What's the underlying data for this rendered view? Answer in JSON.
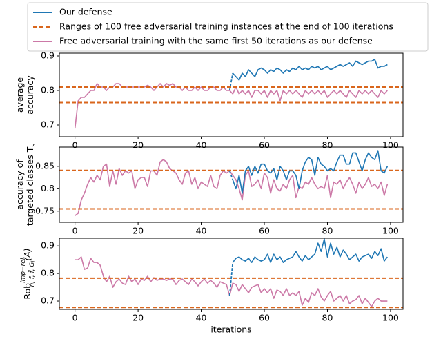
{
  "chart_data": [
    {
      "type": "line",
      "ylabel": [
        "average",
        "accuracy"
      ],
      "xlim": [
        -4.95,
        103.95
      ],
      "xticks": [
        0,
        20,
        40,
        60,
        80,
        100
      ],
      "ylim": [
        0.666,
        0.908
      ],
      "yticks": [
        0.7,
        0.8,
        0.9
      ],
      "series": [
        {
          "name": "Our defense",
          "color": "#1f77b4",
          "first_segment_dashed": true,
          "x": [
            49,
            50,
            51,
            52,
            53,
            54,
            55,
            56,
            57,
            58,
            59,
            60,
            61,
            62,
            63,
            64,
            65,
            66,
            67,
            68,
            69,
            70,
            71,
            72,
            73,
            74,
            75,
            76,
            77,
            78,
            79,
            80,
            81,
            82,
            83,
            84,
            85,
            86,
            87,
            88,
            89,
            90,
            91,
            92,
            93,
            94,
            95,
            96,
            97,
            98,
            99
          ],
          "values": [
            0.8,
            0.85,
            0.84,
            0.83,
            0.85,
            0.84,
            0.86,
            0.85,
            0.84,
            0.86,
            0.865,
            0.86,
            0.85,
            0.86,
            0.855,
            0.865,
            0.86,
            0.85,
            0.86,
            0.855,
            0.865,
            0.86,
            0.87,
            0.86,
            0.865,
            0.86,
            0.87,
            0.865,
            0.87,
            0.86,
            0.865,
            0.87,
            0.86,
            0.865,
            0.87,
            0.875,
            0.87,
            0.875,
            0.88,
            0.87,
            0.885,
            0.88,
            0.875,
            0.88,
            0.885,
            0.885,
            0.89,
            0.865,
            0.87,
            0.87,
            0.875
          ]
        },
        {
          "name": "Ranges of 100 free adversarial training instances at the end of 100 iterations",
          "color": "#d9661c",
          "style": "hline",
          "values": [
            0.765,
            0.81
          ]
        },
        {
          "name": "Free adversarial training with the same first 50 iterations as our defense",
          "color": "#cc79a7",
          "x": [
            0,
            1,
            2,
            3,
            4,
            5,
            6,
            7,
            8,
            9,
            10,
            11,
            12,
            13,
            14,
            15,
            16,
            17,
            18,
            19,
            20,
            21,
            22,
            23,
            24,
            25,
            26,
            27,
            28,
            29,
            30,
            31,
            32,
            33,
            34,
            35,
            36,
            37,
            38,
            39,
            40,
            41,
            42,
            43,
            44,
            45,
            46,
            47,
            48,
            49,
            50,
            51,
            52,
            53,
            54,
            55,
            56,
            57,
            58,
            59,
            60,
            61,
            62,
            63,
            64,
            65,
            66,
            67,
            68,
            69,
            70,
            71,
            72,
            73,
            74,
            75,
            76,
            77,
            78,
            79,
            80,
            81,
            82,
            83,
            84,
            85,
            86,
            87,
            88,
            89,
            90,
            91,
            92,
            93,
            94,
            95,
            96,
            97,
            98,
            99
          ],
          "values": [
            0.69,
            0.77,
            0.78,
            0.78,
            0.79,
            0.8,
            0.8,
            0.82,
            0.81,
            0.81,
            0.8,
            0.81,
            0.81,
            0.82,
            0.82,
            0.81,
            0.81,
            0.81,
            0.81,
            0.81,
            0.81,
            0.81,
            0.81,
            0.815,
            0.81,
            0.8,
            0.81,
            0.82,
            0.81,
            0.82,
            0.815,
            0.82,
            0.81,
            0.81,
            0.8,
            0.81,
            0.8,
            0.8,
            0.81,
            0.8,
            0.81,
            0.8,
            0.8,
            0.81,
            0.81,
            0.8,
            0.8,
            0.81,
            0.8,
            0.8,
            0.79,
            0.81,
            0.79,
            0.8,
            0.79,
            0.8,
            0.78,
            0.8,
            0.8,
            0.79,
            0.8,
            0.78,
            0.8,
            0.79,
            0.8,
            0.77,
            0.8,
            0.79,
            0.8,
            0.79,
            0.8,
            0.79,
            0.78,
            0.8,
            0.79,
            0.8,
            0.79,
            0.8,
            0.79,
            0.8,
            0.78,
            0.79,
            0.8,
            0.79,
            0.8,
            0.79,
            0.78,
            0.8,
            0.79,
            0.78,
            0.8,
            0.79,
            0.8,
            0.79,
            0.8,
            0.79,
            0.78,
            0.8,
            0.79,
            0.8
          ]
        }
      ]
    },
    {
      "type": "line",
      "ylabel": [
        "accuracy of",
        "targeted classes T"
      ],
      "ylabel_sub": "s",
      "xlim": [
        -4.95,
        103.95
      ],
      "xticks": [
        0,
        20,
        40,
        60,
        80,
        100
      ],
      "ylim": [
        0.725,
        0.893
      ],
      "yticks": [
        0.75,
        0.8,
        0.85
      ],
      "series": [
        {
          "color": "#1f77b4",
          "first_segment_dashed": true,
          "x": [
            49,
            50,
            51,
            52,
            53,
            54,
            55,
            56,
            57,
            58,
            59,
            60,
            61,
            62,
            63,
            64,
            65,
            66,
            67,
            68,
            69,
            70,
            71,
            72,
            73,
            74,
            75,
            76,
            77,
            78,
            79,
            80,
            81,
            82,
            83,
            84,
            85,
            86,
            87,
            88,
            89,
            90,
            91,
            92,
            93,
            94,
            95,
            96,
            97,
            98,
            99
          ],
          "values": [
            0.84,
            0.82,
            0.8,
            0.83,
            0.79,
            0.84,
            0.85,
            0.83,
            0.85,
            0.835,
            0.855,
            0.855,
            0.84,
            0.835,
            0.845,
            0.82,
            0.85,
            0.84,
            0.82,
            0.84,
            0.84,
            0.83,
            0.8,
            0.84,
            0.86,
            0.87,
            0.865,
            0.83,
            0.87,
            0.855,
            0.85,
            0.84,
            0.845,
            0.84,
            0.86,
            0.875,
            0.875,
            0.855,
            0.855,
            0.88,
            0.88,
            0.86,
            0.84,
            0.865,
            0.88,
            0.87,
            0.865,
            0.885,
            0.84,
            0.835,
            0.85
          ]
        },
        {
          "color": "#d9661c",
          "style": "hline",
          "values": [
            0.755,
            0.841
          ]
        },
        {
          "color": "#cc79a7",
          "x": [
            0,
            1,
            2,
            3,
            4,
            5,
            6,
            7,
            8,
            9,
            10,
            11,
            12,
            13,
            14,
            15,
            16,
            17,
            18,
            19,
            20,
            21,
            22,
            23,
            24,
            25,
            26,
            27,
            28,
            29,
            30,
            31,
            32,
            33,
            34,
            35,
            36,
            37,
            38,
            39,
            40,
            41,
            42,
            43,
            44,
            45,
            46,
            47,
            48,
            49,
            50,
            51,
            52,
            53,
            54,
            55,
            56,
            57,
            58,
            59,
            60,
            61,
            62,
            63,
            64,
            65,
            66,
            67,
            68,
            69,
            70,
            71,
            72,
            73,
            74,
            75,
            76,
            77,
            78,
            79,
            80,
            81,
            82,
            83,
            84,
            85,
            86,
            87,
            88,
            89,
            90,
            91,
            92,
            93,
            94,
            95,
            96,
            97,
            98,
            99
          ],
          "values": [
            0.74,
            0.745,
            0.775,
            0.79,
            0.81,
            0.825,
            0.815,
            0.83,
            0.82,
            0.85,
            0.855,
            0.805,
            0.84,
            0.81,
            0.845,
            0.83,
            0.84,
            0.835,
            0.84,
            0.8,
            0.82,
            0.825,
            0.825,
            0.805,
            0.84,
            0.84,
            0.83,
            0.86,
            0.865,
            0.86,
            0.845,
            0.84,
            0.835,
            0.82,
            0.81,
            0.835,
            0.84,
            0.81,
            0.825,
            0.8,
            0.815,
            0.81,
            0.805,
            0.83,
            0.805,
            0.8,
            0.83,
            0.84,
            0.835,
            0.84,
            0.83,
            0.82,
            0.8,
            0.775,
            0.83,
            0.84,
            0.805,
            0.81,
            0.82,
            0.8,
            0.835,
            0.825,
            0.79,
            0.82,
            0.8,
            0.795,
            0.81,
            0.8,
            0.82,
            0.83,
            0.78,
            0.805,
            0.8,
            0.815,
            0.81,
            0.825,
            0.81,
            0.8,
            0.805,
            0.8,
            0.83,
            0.78,
            0.815,
            0.81,
            0.82,
            0.8,
            0.815,
            0.825,
            0.81,
            0.79,
            0.815,
            0.8,
            0.81,
            0.825,
            0.805,
            0.81,
            0.8,
            0.815,
            0.785,
            0.81
          ]
        }
      ]
    },
    {
      "type": "line",
      "ylabel_parts": {
        "base": "Rob",
        "sup": "imp−rel",
        "sub": "η, f, f̃, G",
        "subsub": "l",
        "suffix": "(A)"
      },
      "xlabel": "iterations",
      "xlim": [
        -4.95,
        103.95
      ],
      "xticks": [
        0,
        20,
        40,
        60,
        80,
        100
      ],
      "ylim": [
        0.67,
        0.928
      ],
      "yticks": [
        0.7,
        0.8,
        0.9
      ],
      "series": [
        {
          "color": "#1f77b4",
          "first_segment_dashed": true,
          "x": [
            49,
            50,
            51,
            52,
            53,
            54,
            55,
            56,
            57,
            58,
            59,
            60,
            61,
            62,
            63,
            64,
            65,
            66,
            67,
            68,
            69,
            70,
            71,
            72,
            73,
            74,
            75,
            76,
            77,
            78,
            79,
            80,
            81,
            82,
            83,
            84,
            85,
            86,
            87,
            88,
            89,
            90,
            91,
            92,
            93,
            94,
            95,
            96,
            97,
            98,
            99
          ],
          "values": [
            0.72,
            0.84,
            0.855,
            0.86,
            0.85,
            0.845,
            0.855,
            0.84,
            0.86,
            0.85,
            0.845,
            0.85,
            0.87,
            0.84,
            0.87,
            0.85,
            0.86,
            0.84,
            0.85,
            0.855,
            0.86,
            0.88,
            0.86,
            0.845,
            0.865,
            0.85,
            0.86,
            0.87,
            0.91,
            0.88,
            0.925,
            0.86,
            0.91,
            0.87,
            0.895,
            0.86,
            0.885,
            0.87,
            0.85,
            0.86,
            0.87,
            0.845,
            0.86,
            0.865,
            0.87,
            0.855,
            0.88,
            0.865,
            0.89,
            0.845,
            0.86
          ]
        },
        {
          "color": "#d9661c",
          "style": "hline",
          "values": [
            0.677,
            0.783
          ]
        },
        {
          "color": "#cc79a7",
          "x": [
            0,
            1,
            2,
            3,
            4,
            5,
            6,
            7,
            8,
            9,
            10,
            11,
            12,
            13,
            14,
            15,
            16,
            17,
            18,
            19,
            20,
            21,
            22,
            23,
            24,
            25,
            26,
            27,
            28,
            29,
            30,
            31,
            32,
            33,
            34,
            35,
            36,
            37,
            38,
            39,
            40,
            41,
            42,
            43,
            44,
            45,
            46,
            47,
            48,
            49,
            50,
            51,
            52,
            53,
            54,
            55,
            56,
            57,
            58,
            59,
            60,
            61,
            62,
            63,
            64,
            65,
            66,
            67,
            68,
            69,
            70,
            71,
            72,
            73,
            74,
            75,
            76,
            77,
            78,
            79,
            80,
            81,
            82,
            83,
            84,
            85,
            86,
            87,
            88,
            89,
            90,
            91,
            92,
            93,
            94,
            95,
            96,
            97,
            98,
            99
          ],
          "values": [
            0.85,
            0.85,
            0.86,
            0.815,
            0.82,
            0.855,
            0.84,
            0.84,
            0.83,
            0.79,
            0.77,
            0.79,
            0.75,
            0.77,
            0.78,
            0.765,
            0.76,
            0.79,
            0.77,
            0.78,
            0.76,
            0.78,
            0.775,
            0.79,
            0.77,
            0.785,
            0.775,
            0.78,
            0.78,
            0.775,
            0.78,
            0.78,
            0.76,
            0.775,
            0.78,
            0.77,
            0.76,
            0.78,
            0.77,
            0.755,
            0.77,
            0.78,
            0.765,
            0.775,
            0.765,
            0.75,
            0.77,
            0.765,
            0.76,
            0.72,
            0.765,
            0.76,
            0.735,
            0.76,
            0.745,
            0.73,
            0.75,
            0.755,
            0.76,
            0.73,
            0.745,
            0.73,
            0.745,
            0.71,
            0.74,
            0.735,
            0.72,
            0.745,
            0.72,
            0.73,
            0.72,
            0.735,
            0.685,
            0.71,
            0.695,
            0.73,
            0.72,
            0.745,
            0.715,
            0.7,
            0.72,
            0.735,
            0.7,
            0.71,
            0.72,
            0.7,
            0.72,
            0.69,
            0.7,
            0.705,
            0.72,
            0.69,
            0.71,
            0.695,
            0.68,
            0.7,
            0.71,
            0.7,
            0.7,
            0.7
          ]
        }
      ]
    }
  ]
}
